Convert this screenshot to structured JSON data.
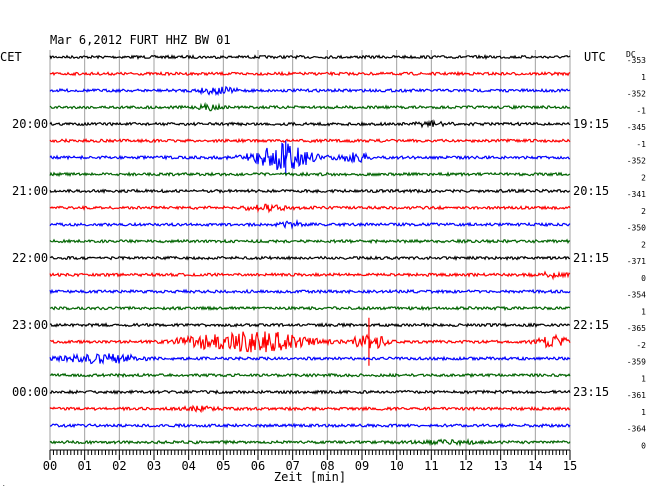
{
  "chart_data": {
    "type": "line",
    "title": "Mar 6,2012   FURT HHZ BW 01",
    "left_label": "CET",
    "right_label": "UTC",
    "dc_label": "DC",
    "xlabel": "Zeit [min]",
    "xlim": [
      0,
      15
    ],
    "x_ticks": [
      "00",
      "01",
      "02",
      "03",
      "04",
      "05",
      "06",
      "07",
      "08",
      "09",
      "10",
      "11",
      "12",
      "13",
      "14",
      "15"
    ],
    "grid": true,
    "trace_colors": [
      "#000000",
      "#ff0000",
      "#0000ff",
      "#006400"
    ],
    "left_time_labels": [
      {
        "row": 4,
        "text": "20:00"
      },
      {
        "row": 8,
        "text": "21:00"
      },
      {
        "row": 12,
        "text": "22:00"
      },
      {
        "row": 16,
        "text": "23:00"
      },
      {
        "row": 20,
        "text": "00:00"
      }
    ],
    "right_time_labels": [
      {
        "row": 4,
        "text": "19:15"
      },
      {
        "row": 8,
        "text": "20:15"
      },
      {
        "row": 12,
        "text": "21:15"
      },
      {
        "row": 16,
        "text": "22:15"
      },
      {
        "row": 20,
        "text": "23:15"
      }
    ],
    "dc_values": [
      "-353",
      "1",
      "-352",
      "-1",
      "-345",
      "-1",
      "-352",
      "2",
      "-341",
      "2",
      "-350",
      "2",
      "-371",
      "0",
      "-354",
      "1",
      "-365",
      "-2",
      "-359",
      "1",
      "-361",
      "1",
      "-364",
      "0"
    ],
    "events": [
      {
        "row": 2,
        "center_min": 4.8,
        "width_min": 1.0,
        "amp": 0.45
      },
      {
        "row": 3,
        "center_min": 4.6,
        "width_min": 0.6,
        "amp": 0.3
      },
      {
        "row": 4,
        "center_min": 11.0,
        "width_min": 0.8,
        "amp": 0.3
      },
      {
        "row": 6,
        "center_min": 6.7,
        "width_min": 1.6,
        "amp": 1.9
      },
      {
        "row": 6,
        "center_min": 8.8,
        "width_min": 0.8,
        "amp": 0.6
      },
      {
        "row": 9,
        "center_min": 6.2,
        "width_min": 1.2,
        "amp": 0.35
      },
      {
        "row": 10,
        "center_min": 7.0,
        "width_min": 0.7,
        "amp": 0.35
      },
      {
        "row": 13,
        "center_min": 14.4,
        "width_min": 0.8,
        "amp": 0.35
      },
      {
        "row": 17,
        "center_min": 6.0,
        "width_min": 2.6,
        "amp": 1.5
      },
      {
        "row": 17,
        "center_min": 9.2,
        "width_min": 0.9,
        "amp": 1.1
      },
      {
        "row": 17,
        "center_min": 14.5,
        "width_min": 0.8,
        "amp": 0.9
      },
      {
        "row": 17,
        "center_min": 4.2,
        "width_min": 1.2,
        "amp": 0.6
      },
      {
        "row": 18,
        "center_min": 1.5,
        "width_min": 2.0,
        "amp": 0.65
      },
      {
        "row": 21,
        "center_min": 4.3,
        "width_min": 0.8,
        "amp": 0.25
      },
      {
        "row": 23,
        "center_min": 11.5,
        "width_min": 1.5,
        "amp": 0.2
      }
    ],
    "spikes": [
      {
        "row": 17,
        "at_min": 9.2,
        "amp": 3.0
      },
      {
        "row": 6,
        "at_min": 6.8,
        "amp": 2.1
      }
    ]
  }
}
